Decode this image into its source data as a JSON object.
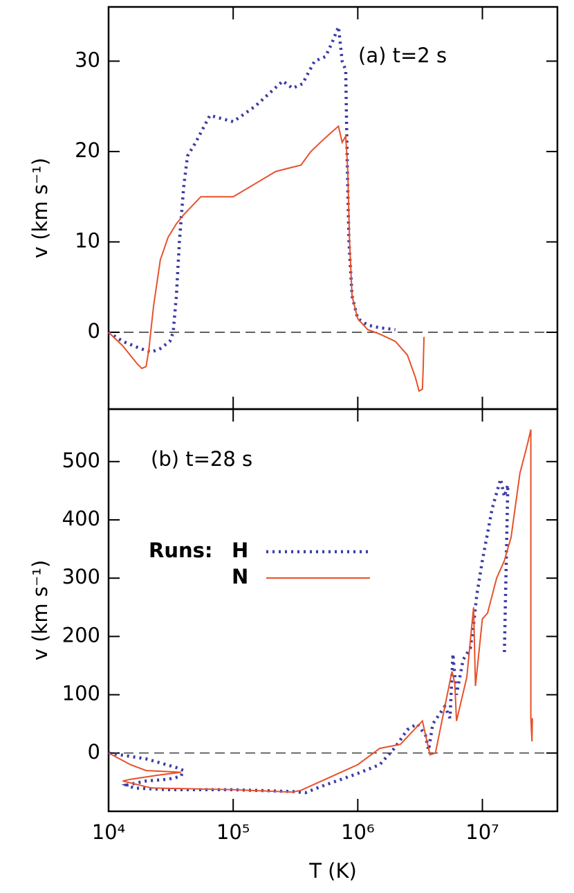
{
  "chart_data": [
    {
      "type": "line",
      "annotation": "(a) t=2 s",
      "ylabel": "v (km s⁻¹)",
      "x_log": true,
      "xlim": [
        10000,
        40000000
      ],
      "ylim": [
        -8.5,
        36
      ],
      "yticks": [
        0,
        10,
        20,
        30
      ],
      "zero_line": true,
      "series": [
        {
          "name": "H",
          "color": "#3b3ba6",
          "dash": "dotted",
          "x": [
            10000,
            13000,
            18000,
            22000,
            26000,
            31000,
            33000,
            35000,
            37000,
            40000,
            43000,
            50000,
            65000,
            100000,
            150000,
            250000,
            300000,
            360000,
            450000,
            550000,
            620000,
            700000,
            750000,
            800000,
            820000,
            850000,
            900000,
            1000000,
            1200000,
            1500000,
            2000000
          ],
          "values": [
            0,
            -1,
            -1.8,
            -2.2,
            -1.8,
            -1,
            0,
            4,
            10,
            16,
            19.5,
            21,
            24,
            23.3,
            25,
            27.8,
            27,
            27.5,
            30,
            30.5,
            32,
            33.8,
            30,
            29,
            20,
            10,
            4,
            1.5,
            0.8,
            0.5,
            0.3
          ]
        },
        {
          "name": "N",
          "color": "#e8502a",
          "dash": "solid",
          "x": [
            10000,
            13000,
            17000,
            18500,
            20000,
            21000,
            23000,
            26000,
            30000,
            35000,
            40000,
            55000,
            100000,
            220000,
            350000,
            420000,
            500000,
            600000,
            700000,
            750000,
            800000,
            830000,
            860000,
            900000,
            1000000,
            1200000,
            1500000,
            2000000,
            2500000,
            2900000,
            3100000,
            3300000,
            3350000,
            3400000
          ],
          "values": [
            0,
            -1.5,
            -3.5,
            -4,
            -3.8,
            -2,
            3,
            8,
            10.5,
            12,
            13,
            15,
            15,
            17.8,
            18.5,
            20,
            21,
            22,
            22.8,
            21,
            21.7,
            18,
            10,
            4,
            1.5,
            0.3,
            -0.2,
            -1,
            -2.5,
            -5,
            -6.5,
            -6.3,
            -4,
            -0.5
          ]
        }
      ]
    },
    {
      "type": "line",
      "annotation": "(b) t=28 s",
      "ylabel": "v (km s⁻¹)",
      "xlabel": "T (K)",
      "x_log": true,
      "xlim": [
        10000,
        40000000
      ],
      "xticks": [
        {
          "value": 10000,
          "label": "10⁴"
        },
        {
          "value": 100000,
          "label": "10⁵"
        },
        {
          "value": 1000000,
          "label": "10⁶"
        },
        {
          "value": 10000000,
          "label": "10⁷"
        }
      ],
      "ylim": [
        -100,
        590
      ],
      "yticks": [
        0,
        100,
        200,
        300,
        400,
        500
      ],
      "zero_line": true,
      "legend_title": "Runs:",
      "series": [
        {
          "name": "H",
          "color": "#3b3ba6",
          "dash": "dotted",
          "x": [
            10000,
            20000,
            35000,
            40000,
            38000,
            30000,
            20000,
            14000,
            16000,
            30000,
            100000,
            300000,
            380000,
            500000,
            1000000,
            1500000,
            2000000,
            2500000,
            3000000,
            3500000,
            3700000,
            4000000,
            5000000,
            5500000,
            5800000,
            6200000,
            7000000,
            8000000,
            8500000,
            9000000,
            10000000,
            12000000,
            14000000,
            15000000,
            16000000,
            15000000
          ],
          "values": [
            0,
            -10,
            -25,
            -30,
            -40,
            -45,
            -48,
            -55,
            -60,
            -63,
            -63,
            -66,
            -68,
            -58,
            -35,
            -20,
            10,
            40,
            50,
            30,
            5,
            50,
            80,
            60,
            170,
            100,
            160,
            180,
            220,
            270,
            330,
            420,
            470,
            440,
            460,
            170
          ]
        },
        {
          "name": "N",
          "color": "#e8502a",
          "dash": "solid",
          "x": [
            10000,
            15000,
            20000,
            38000,
            25000,
            15000,
            13000,
            22000,
            100000,
            300000,
            350000,
            1000000,
            1500000,
            2200000,
            3300000,
            3800000,
            4200000,
            5000000,
            5700000,
            6000000,
            6200000,
            7500000,
            8500000,
            8800000,
            10000000,
            11000000,
            13000000,
            15000000,
            17000000,
            20000000,
            23000000,
            24500000,
            24500000,
            25000000,
            25200000
          ],
          "values": [
            0,
            -20,
            -30,
            -33,
            -38,
            -45,
            -48,
            -60,
            -63,
            -67,
            -64,
            -20,
            8,
            15,
            55,
            -3,
            0,
            80,
            140,
            120,
            55,
            130,
            250,
            115,
            230,
            240,
            300,
            330,
            370,
            480,
            530,
            555,
            60,
            20,
            60
          ]
        }
      ]
    }
  ]
}
